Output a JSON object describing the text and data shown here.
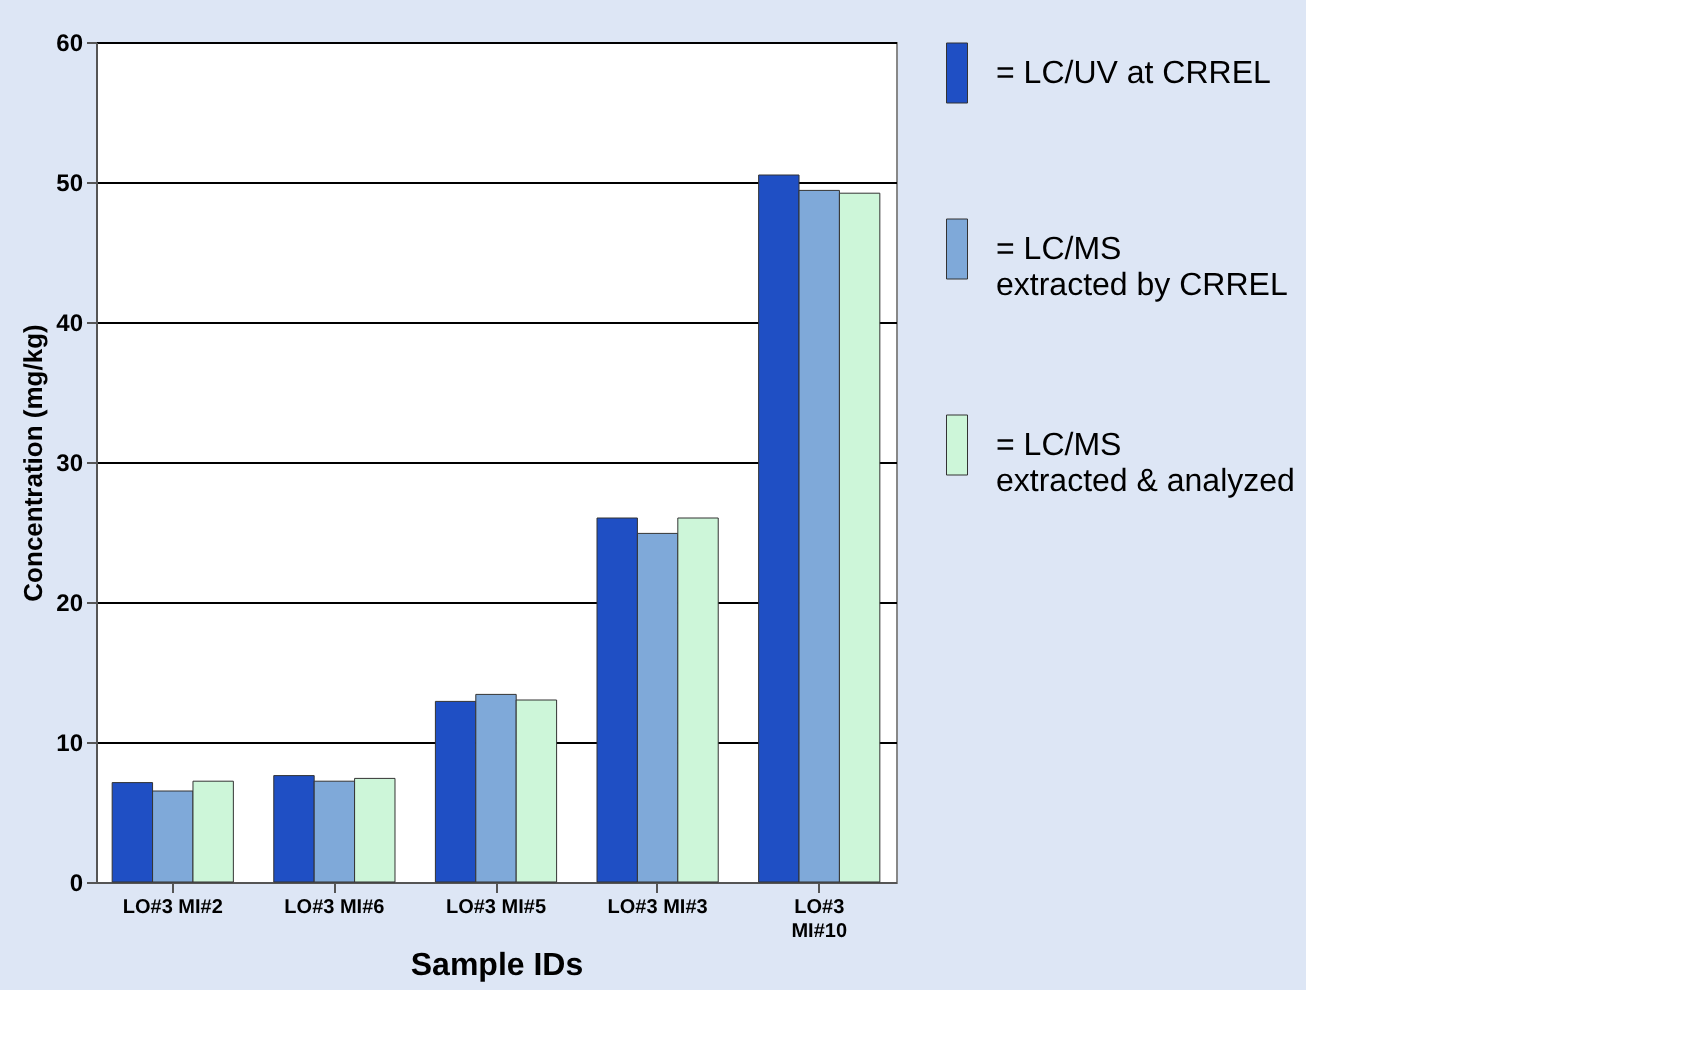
{
  "chart_data": {
    "type": "bar",
    "xlabel": "Sample IDs",
    "ylabel": "Concentration (mg/kg)",
    "categories": [
      "LO#3 MI#2",
      "LO#3 MI#6",
      "LO#3 MI#5",
      "LO#3 MI#3",
      "LO#3\nMI#10"
    ],
    "series": [
      {
        "name": "= LC/UV at CRREL",
        "color": "#1f4fc4",
        "values": [
          7.1,
          7.6,
          12.9,
          26.0,
          50.5
        ]
      },
      {
        "name": "= LC/MS\n   extracted by CRREL",
        "color": "#7fa9d9",
        "values": [
          6.5,
          7.2,
          13.4,
          24.9,
          49.4
        ]
      },
      {
        "name": "= LC/MS\n   extracted & analyzed",
        "color": "#cdf6d9",
        "values": [
          7.2,
          7.4,
          13.0,
          26.0,
          49.2
        ]
      }
    ],
    "ylim": [
      0,
      60
    ],
    "yticks": [
      0,
      10,
      20,
      30,
      40,
      50,
      60
    ],
    "grid": "y",
    "legend": "right"
  }
}
